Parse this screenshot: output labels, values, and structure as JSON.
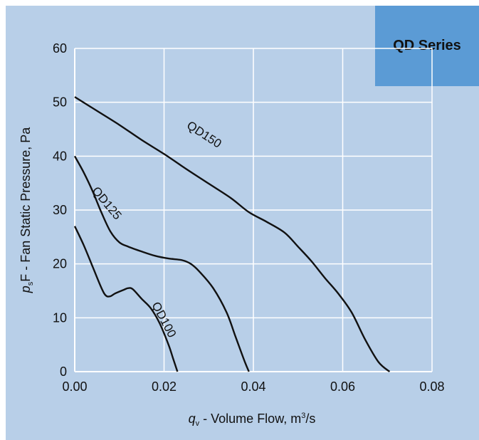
{
  "chart_data": {
    "type": "line",
    "badge": "QD Series",
    "xlabel": {
      "italic": "q",
      "sub": "v",
      "text": " - Volume Flow, m",
      "sup": "3",
      "tail": "/s"
    },
    "ylabel": {
      "italic": "p",
      "sub": "s",
      "text": "F - Fan Static Pressure, Pa"
    },
    "xlim": [
      0,
      0.08
    ],
    "ylim": [
      0,
      60
    ],
    "xticks": [
      "0.00",
      "0.02",
      "0.04",
      "0.06",
      "0.08"
    ],
    "yticks": [
      "0",
      "10",
      "20",
      "30",
      "40",
      "50",
      "60"
    ],
    "grid": true,
    "series": [
      {
        "name": "QD150",
        "x": [
          0,
          0.005,
          0.01,
          0.015,
          0.02,
          0.025,
          0.03,
          0.035,
          0.039,
          0.043,
          0.047,
          0.05,
          0.053,
          0.056,
          0.059,
          0.062,
          0.065,
          0.068,
          0.0705
        ],
        "y": [
          51,
          48.4,
          45.8,
          43.0,
          40.4,
          37.6,
          34.9,
          32.2,
          29.6,
          27.8,
          25.8,
          23.2,
          20.5,
          17.4,
          14.5,
          11.0,
          6.0,
          1.8,
          0
        ]
      },
      {
        "name": "QD125",
        "x": [
          0,
          0.002,
          0.004,
          0.006,
          0.008,
          0.01,
          0.012,
          0.015,
          0.018,
          0.021,
          0.024,
          0.026,
          0.028,
          0.031,
          0.034,
          0.036,
          0.038,
          0.039
        ],
        "y": [
          40,
          37,
          33.5,
          29.5,
          26,
          24,
          23.2,
          22.3,
          21.5,
          21.0,
          20.7,
          20.0,
          18.5,
          15.5,
          11.0,
          6.5,
          2.0,
          0
        ]
      },
      {
        "name": "QD100",
        "x": [
          0,
          0.002,
          0.004,
          0.006,
          0.007,
          0.008,
          0.009,
          0.011,
          0.012,
          0.013,
          0.015,
          0.017,
          0.019,
          0.021,
          0.022,
          0.023
        ],
        "y": [
          27,
          23.5,
          19.5,
          15.5,
          14.1,
          14.0,
          14.5,
          15.2,
          15.5,
          15.3,
          13.5,
          11.8,
          9.0,
          5.0,
          2.5,
          0
        ]
      }
    ]
  }
}
